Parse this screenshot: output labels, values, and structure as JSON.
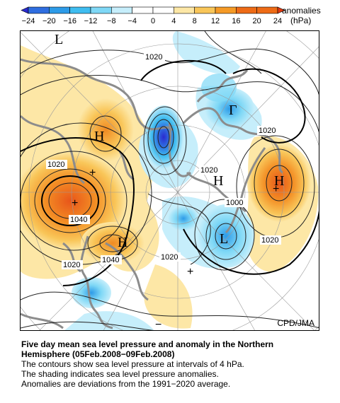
{
  "colorbar": {
    "ticks": [
      "−24",
      "−20",
      "−16",
      "−12",
      "−8",
      "−4",
      "0",
      "4",
      "8",
      "12",
      "16",
      "20",
      "24"
    ],
    "colors": [
      "#2a2bd0",
      "#2f6ee0",
      "#2d9be8",
      "#3fbdf0",
      "#7fd8f6",
      "#c6eefb",
      "#ffffff",
      "#ffffff",
      "#fde7a6",
      "#f9c659",
      "#f59a26",
      "#ee6b16",
      "#e23b12"
    ],
    "label_line1": "anomalies",
    "label_line2": "(hPa)"
  },
  "map": {
    "pressure_labels": [
      "1020",
      "1020",
      "1020",
      "1040",
      "1040",
      "1020",
      "1020",
      "1020",
      "1000",
      "1020",
      "1020"
    ],
    "symbols": [
      "L",
      "Γ",
      "H",
      "H",
      "H",
      "H",
      "L",
      "+",
      "−",
      "+",
      "+",
      "+"
    ],
    "credit": "CPD/JMA"
  },
  "caption": {
    "title_line1": "Five day mean sea level pressure and anomaly in the Northern",
    "title_line2": "Hemisphere (05Feb.2008−09Feb.2008)",
    "line3": "The contours show sea level pressure at intervals of 4 hPa.",
    "line4": "The shading indicates sea level pressure anomalies.",
    "line5": "Anomalies are deviations from the 1991−2020 average."
  }
}
